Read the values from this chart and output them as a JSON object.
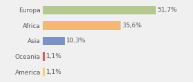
{
  "categories": [
    "Europa",
    "Africa",
    "Asia",
    "Oceania",
    "America"
  ],
  "values": [
    51.7,
    35.6,
    10.3,
    1.1,
    1.1
  ],
  "labels": [
    "51,7%",
    "35,6%",
    "10,3%",
    "1,1%",
    "1,1%"
  ],
  "bar_colors": [
    "#b5c98e",
    "#f0b97a",
    "#7b93c4",
    "#e05555",
    "#f5d06e"
  ],
  "background_color": "#f0f0f0",
  "plot_bg": "#f0f0f0",
  "xlim": [
    0,
    58
  ],
  "label_fontsize": 6.5,
  "tick_fontsize": 6.5,
  "bar_height": 0.55
}
